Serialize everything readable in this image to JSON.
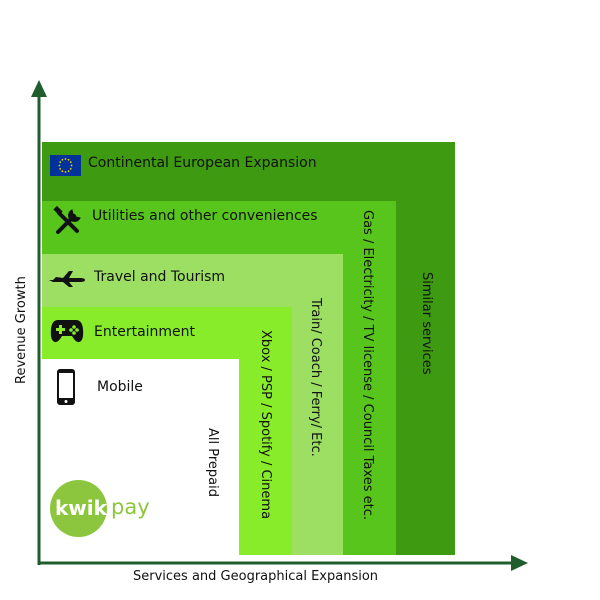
{
  "axes": {
    "y_label": "Revenue Growth",
    "x_label": "Services and Geographical Expansion"
  },
  "layers": [
    {
      "label": "Continental European Expansion",
      "icon": "eu-flag-icon",
      "side_label": "Similar services",
      "color": "#3e9a10"
    },
    {
      "label": "Utilities and other conveniences",
      "icon": "tools-icon",
      "side_label": "Gas / Electricity / TV license / Council Taxes etc.",
      "color": "#57c51c"
    },
    {
      "label": "Travel and Tourism",
      "icon": "airplane-icon",
      "side_label": "Train/ Coach / Ferry/ Etc.",
      "color": "#9cdf63"
    },
    {
      "label": "Entertainment",
      "icon": "gamepad-icon",
      "side_label": "Xbox / PSP / Spotify / Cinema",
      "color": "#89ec2a"
    },
    {
      "label": "Mobile",
      "icon": "mobile-phone-icon",
      "side_label": "All Prepaid",
      "color": "#ffffff"
    }
  ],
  "logo": {
    "circle_text": "kwik",
    "suffix": "pay"
  },
  "colors": {
    "axis": "#1f5d2c",
    "logo_circle": "#8cc63f",
    "logo_suffix": "#8cc63f",
    "eu_blue": "#003399",
    "eu_star": "#ffcc00"
  }
}
